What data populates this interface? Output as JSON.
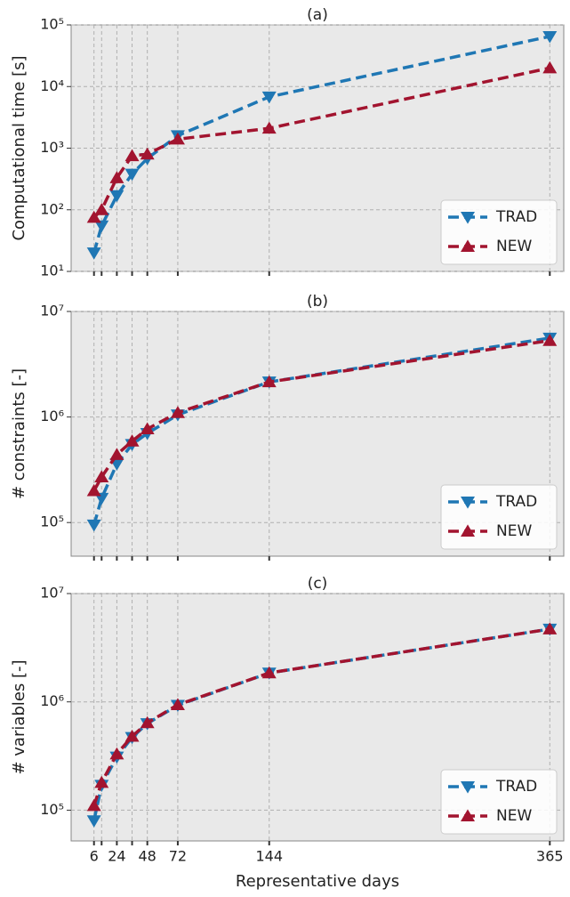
{
  "chart_data": [
    {
      "type": "line",
      "title": "(a)",
      "y_label": "Computational time [s]",
      "x": [
        6,
        12,
        24,
        36,
        48,
        72,
        144,
        365
      ],
      "series": [
        {
          "name": "TRAD",
          "color": "#1f77b4",
          "marker": "triangle-down",
          "values": [
            20,
            55,
            170,
            380,
            680,
            1600,
            6800,
            65000
          ]
        },
        {
          "name": "NEW",
          "color": "#a2142f",
          "marker": "triangle-up",
          "values": [
            75,
            100,
            330,
            750,
            800,
            1400,
            2100,
            20000
          ]
        }
      ],
      "xlim": [
        -12,
        376
      ],
      "ylim": [
        10,
        100000
      ],
      "log_y": true,
      "grid": true,
      "legend": "lower right",
      "yticks": [
        {
          "value": 10,
          "label": "10¹"
        },
        {
          "value": 100,
          "label": "10²"
        },
        {
          "value": 1000,
          "label": "10³"
        },
        {
          "value": 10000,
          "label": "10⁴"
        },
        {
          "value": 100000,
          "label": "10⁵"
        }
      ]
    },
    {
      "type": "line",
      "title": "(b)",
      "y_label": "# constraints [-]",
      "x": [
        6,
        12,
        24,
        36,
        48,
        72,
        144,
        365
      ],
      "series": [
        {
          "name": "TRAD",
          "color": "#1f77b4",
          "marker": "triangle-down",
          "values": [
            95000,
            170000,
            360000,
            550000,
            700000,
            1050000,
            2150000,
            5600000
          ]
        },
        {
          "name": "NEW",
          "color": "#a2142f",
          "marker": "triangle-up",
          "values": [
            200000,
            270000,
            440000,
            590000,
            770000,
            1100000,
            2150000,
            5300000
          ]
        }
      ],
      "xlim": [
        -12,
        376
      ],
      "ylim": [
        48000,
        10000000
      ],
      "log_y": true,
      "grid": true,
      "legend": "lower right",
      "yticks": [
        {
          "value": 100000,
          "label": "10⁵"
        },
        {
          "value": 1000000,
          "label": "10⁶"
        },
        {
          "value": 10000000,
          "label": "10⁷"
        }
      ]
    },
    {
      "type": "line",
      "title": "(c)",
      "y_label": "# variables [-]",
      "x_label": "Representative days",
      "x": [
        6,
        12,
        24,
        36,
        48,
        72,
        144,
        365
      ],
      "series": [
        {
          "name": "TRAD",
          "color": "#1f77b4",
          "marker": "triangle-down",
          "values": [
            80000,
            170000,
            310000,
            470000,
            630000,
            930000,
            1850000,
            4700000
          ]
        },
        {
          "name": "NEW",
          "color": "#a2142f",
          "marker": "triangle-up",
          "values": [
            110000,
            180000,
            330000,
            480000,
            640000,
            940000,
            1850000,
            4700000
          ]
        }
      ],
      "xlim": [
        -12,
        376
      ],
      "ylim": [
        52000,
        10000000
      ],
      "log_y": true,
      "grid": true,
      "legend": "lower right",
      "xticks": [
        6,
        24,
        48,
        72,
        144,
        365
      ],
      "yticks": [
        {
          "value": 100000,
          "label": "10⁵"
        },
        {
          "value": 1000000,
          "label": "10⁶"
        },
        {
          "value": 10000000,
          "label": "10⁷"
        }
      ]
    }
  ]
}
